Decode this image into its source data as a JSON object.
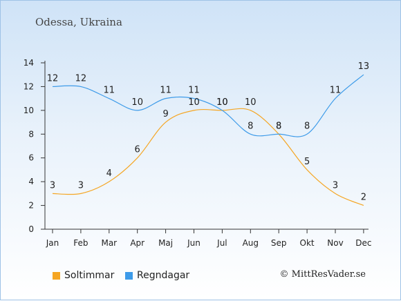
{
  "chart_data": {
    "type": "line",
    "title": "Odessa, Ukraina",
    "categories": [
      "Jan",
      "Feb",
      "Mar",
      "Apr",
      "Maj",
      "Jun",
      "Jul",
      "Aug",
      "Sep",
      "Okt",
      "Nov",
      "Dec"
    ],
    "yticks": [
      0,
      2,
      4,
      6,
      8,
      10,
      12,
      14
    ],
    "ylim": [
      0,
      14
    ],
    "series": [
      {
        "name": "Soltimmar",
        "color": "#f5a623",
        "values": [
          3,
          3,
          4,
          6,
          9,
          10,
          10,
          10,
          8,
          5,
          3,
          2
        ]
      },
      {
        "name": "Regndagar",
        "color": "#3d9be9",
        "values": [
          12,
          12,
          11,
          10,
          11,
          11,
          10,
          8,
          8,
          8,
          11,
          13
        ]
      }
    ],
    "legend_position": "bottom-left",
    "grid": false
  },
  "copyright": "© MittResVader.se"
}
